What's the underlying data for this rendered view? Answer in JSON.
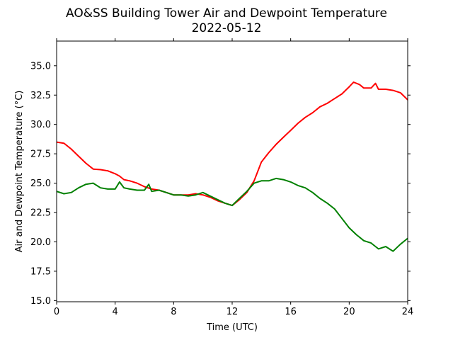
{
  "chart_data": {
    "type": "line",
    "title": "AO&SS Building Tower Air and Dewpoint Temperature",
    "subtitle": "2022-05-12",
    "xlabel": "Time (UTC)",
    "ylabel": "Air and Dewpoint Temperature (°C)",
    "xlim": [
      0,
      24
    ],
    "ylim": [
      14.9,
      37.1
    ],
    "xticks": [
      0,
      4,
      8,
      12,
      16,
      20,
      24
    ],
    "xtick_labels": [
      "0",
      "4",
      "8",
      "12",
      "16",
      "20",
      "24"
    ],
    "yticks": [
      15.0,
      17.5,
      20.0,
      22.5,
      25.0,
      27.5,
      30.0,
      32.5,
      35.0
    ],
    "ytick_labels": [
      "15.0",
      "17.5",
      "20.0",
      "22.5",
      "25.0",
      "27.5",
      "30.0",
      "32.5",
      "35.0"
    ],
    "grid": false,
    "series": [
      {
        "color": "#ff0000",
        "x": [
          0,
          0.5,
          1,
          1.5,
          2,
          2.5,
          3,
          3.5,
          4,
          4.3,
          4.6,
          5,
          5.5,
          6,
          6.5,
          7,
          7.5,
          8,
          8.5,
          9,
          9.5,
          10,
          10.5,
          11,
          11.5,
          12,
          12.5,
          13,
          13.5,
          14,
          14.5,
          15,
          15.5,
          16,
          16.5,
          17,
          17.5,
          18,
          18.5,
          19,
          19.5,
          20,
          20.3,
          20.7,
          21,
          21.5,
          21.8,
          22,
          22.5,
          23,
          23.5,
          24
        ],
        "y": [
          28.5,
          28.4,
          27.9,
          27.3,
          26.7,
          26.2,
          26.15,
          26.05,
          25.8,
          25.6,
          25.3,
          25.2,
          25.0,
          24.7,
          24.5,
          24.4,
          24.2,
          24.0,
          24.0,
          24.0,
          24.1,
          24.0,
          23.8,
          23.5,
          23.3,
          23.1,
          23.6,
          24.2,
          25.2,
          26.8,
          27.6,
          28.3,
          28.9,
          29.5,
          30.1,
          30.6,
          31.0,
          31.5,
          31.8,
          32.2,
          32.6,
          33.2,
          33.6,
          33.4,
          33.1,
          33.1,
          33.5,
          33.0,
          33.0,
          32.9,
          32.7,
          32.1
        ]
      },
      {
        "color": "#008000",
        "x": [
          0,
          0.5,
          1,
          1.5,
          2,
          2.5,
          3,
          3.5,
          4,
          4.3,
          4.6,
          5,
          5.5,
          6,
          6.3,
          6.5,
          7,
          7.5,
          8,
          8.5,
          9,
          9.5,
          10,
          10.5,
          11,
          11.5,
          12,
          12.5,
          13,
          13.5,
          14,
          14.5,
          15,
          15.5,
          16,
          16.5,
          17,
          17.5,
          18,
          18.5,
          19,
          19.5,
          20,
          20.5,
          21,
          21.5,
          22,
          22.5,
          23,
          23.5,
          24
        ],
        "y": [
          24.3,
          24.1,
          24.2,
          24.6,
          24.9,
          25.0,
          24.6,
          24.5,
          24.5,
          25.1,
          24.6,
          24.5,
          24.4,
          24.4,
          24.9,
          24.3,
          24.4,
          24.2,
          24.0,
          24.0,
          23.9,
          24.0,
          24.2,
          23.9,
          23.6,
          23.3,
          23.1,
          23.7,
          24.3,
          25.0,
          25.2,
          25.2,
          25.4,
          25.3,
          25.1,
          24.8,
          24.6,
          24.2,
          23.7,
          23.3,
          22.8,
          22.0,
          21.2,
          20.6,
          20.1,
          19.9,
          19.4,
          19.6,
          19.2,
          19.8,
          20.3
        ]
      }
    ]
  }
}
